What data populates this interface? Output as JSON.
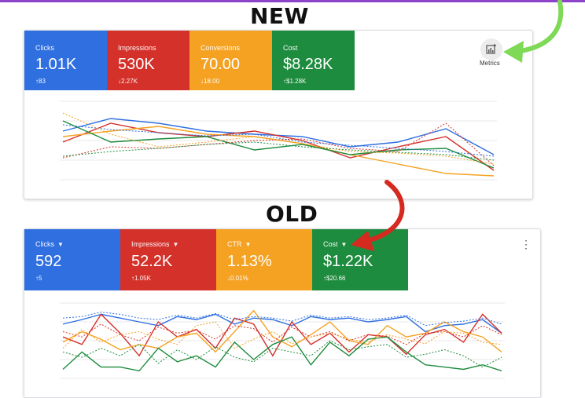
{
  "headings": {
    "new": "NEW",
    "old": "OLD"
  },
  "colors": {
    "blue": "#2f6fe0",
    "red": "#d4312b",
    "orange": "#f5a223",
    "green": "#1e8c3e",
    "arrow_green": "#7ed957",
    "arrow_red": "#d42a1f"
  },
  "new_panel": {
    "tiles": [
      {
        "label": "Clicks",
        "value": "1.01K",
        "change": "↑83",
        "color": "#2f6fe0"
      },
      {
        "label": "Impressions",
        "value": "530K",
        "change": "↓2.27K",
        "color": "#d4312b"
      },
      {
        "label": "Conversions",
        "value": "70.00",
        "change": "↓18.00",
        "color": "#f5a223"
      },
      {
        "label": "Cost",
        "value": "$8.28K",
        "change": "↑$1.28K",
        "color": "#1e8c3e"
      }
    ],
    "metrics_button": {
      "icon": "chart-add-icon",
      "label": "Metrics"
    }
  },
  "old_panel": {
    "tiles": [
      {
        "label": "Clicks",
        "value": "592",
        "change": "↑5",
        "color": "#2f6fe0"
      },
      {
        "label": "Impressions",
        "value": "52.2K",
        "change": "↑1.05K",
        "color": "#d4312b"
      },
      {
        "label": "CTR",
        "value": "1.13%",
        "change": "↓0.01%",
        "color": "#f5a223"
      },
      {
        "label": "Cost",
        "value": "$1.22K",
        "change": "↑$20.66",
        "color": "#1e8c3e"
      }
    ],
    "menu_icon": "more-vert-icon"
  },
  "chart_data": [
    {
      "type": "line",
      "title": "",
      "xlabel": "",
      "ylabel": "",
      "x": [
        1,
        2,
        3,
        4,
        5,
        6,
        7,
        8,
        9,
        10
      ],
      "ylim": [
        0,
        100
      ],
      "grid": true,
      "series": [
        {
          "color": "#2f6fe0",
          "dashed": false,
          "values": [
            62,
            78,
            72,
            62,
            58,
            55,
            42,
            48,
            65,
            32
          ]
        },
        {
          "color": "#d4312b",
          "dashed": false,
          "values": [
            48,
            72,
            60,
            55,
            62,
            50,
            28,
            42,
            55,
            12
          ]
        },
        {
          "color": "#f5a223",
          "dashed": false,
          "values": [
            55,
            62,
            68,
            58,
            55,
            46,
            32,
            20,
            8,
            5
          ]
        },
        {
          "color": "#1e8c3e",
          "dashed": false,
          "values": [
            75,
            48,
            52,
            55,
            38,
            45,
            32,
            38,
            40,
            15
          ]
        },
        {
          "color": "#2f6fe0",
          "dashed": true,
          "values": [
            70,
            64,
            60,
            56,
            58,
            48,
            44,
            40,
            36,
            30
          ]
        },
        {
          "color": "#d4312b",
          "dashed": true,
          "values": [
            28,
            42,
            40,
            45,
            50,
            52,
            40,
            36,
            72,
            18
          ]
        },
        {
          "color": "#f5a223",
          "dashed": true,
          "values": [
            85,
            58,
            42,
            48,
            55,
            46,
            36,
            34,
            30,
            20
          ]
        },
        {
          "color": "#1e8c3e",
          "dashed": true,
          "values": [
            30,
            36,
            40,
            45,
            48,
            42,
            38,
            35,
            32,
            25
          ]
        }
      ]
    },
    {
      "type": "line",
      "title": "",
      "xlabel": "",
      "ylabel": "",
      "x": [
        1,
        2,
        3,
        4,
        5,
        6,
        7,
        8,
        9,
        10,
        11,
        12,
        13,
        14,
        15,
        16,
        17,
        18,
        19,
        20,
        21,
        22,
        23,
        24
      ],
      "ylim": [
        0,
        100
      ],
      "grid": true,
      "series": [
        {
          "color": "#2f6fe0",
          "dashed": false,
          "values": [
            72,
            78,
            85,
            80,
            75,
            70,
            82,
            78,
            85,
            72,
            80,
            78,
            70,
            82,
            78,
            80,
            75,
            78,
            82,
            62,
            70,
            72,
            78,
            60
          ]
        },
        {
          "color": "#d4312b",
          "dashed": false,
          "values": [
            55,
            45,
            85,
            60,
            30,
            75,
            55,
            65,
            40,
            80,
            72,
            30,
            75,
            45,
            60,
            35,
            58,
            55,
            32,
            58,
            65,
            48,
            85,
            60
          ]
        },
        {
          "color": "#f5a223",
          "dashed": false,
          "values": [
            48,
            62,
            52,
            38,
            45,
            40,
            55,
            60,
            35,
            62,
            90,
            55,
            42,
            58,
            75,
            50,
            45,
            70,
            55,
            60,
            75,
            62,
            55,
            35
          ]
        },
        {
          "color": "#1e8c3e",
          "dashed": false,
          "values": [
            12,
            35,
            15,
            15,
            10,
            40,
            22,
            30,
            15,
            48,
            25,
            45,
            55,
            18,
            48,
            30,
            52,
            55,
            35,
            18,
            15,
            12,
            18,
            10
          ]
        },
        {
          "color": "#2f6fe0",
          "dashed": true,
          "values": [
            80,
            82,
            88,
            85,
            80,
            78,
            84,
            80,
            86,
            78,
            82,
            80,
            76,
            84,
            80,
            82,
            78,
            80,
            84,
            70,
            74,
            76,
            80,
            72
          ]
        },
        {
          "color": "#d4312b",
          "dashed": true,
          "values": [
            62,
            55,
            72,
            58,
            50,
            68,
            60,
            64,
            52,
            70,
            66,
            48,
            68,
            55,
            62,
            50,
            58,
            56,
            45,
            60,
            62,
            55,
            70,
            58
          ]
        },
        {
          "color": "#f5a223",
          "dashed": true,
          "values": [
            40,
            65,
            48,
            58,
            62,
            52,
            45,
            70,
            75,
            40,
            52,
            62,
            46,
            55,
            60,
            52,
            48,
            58,
            52,
            46,
            62,
            60,
            48,
            45
          ]
        },
        {
          "color": "#1e8c3e",
          "dashed": true,
          "values": [
            35,
            28,
            40,
            30,
            45,
            20,
            38,
            25,
            42,
            28,
            22,
            40,
            35,
            30,
            50,
            38,
            42,
            45,
            28,
            32,
            38,
            30,
            15,
            28
          ]
        }
      ]
    }
  ]
}
